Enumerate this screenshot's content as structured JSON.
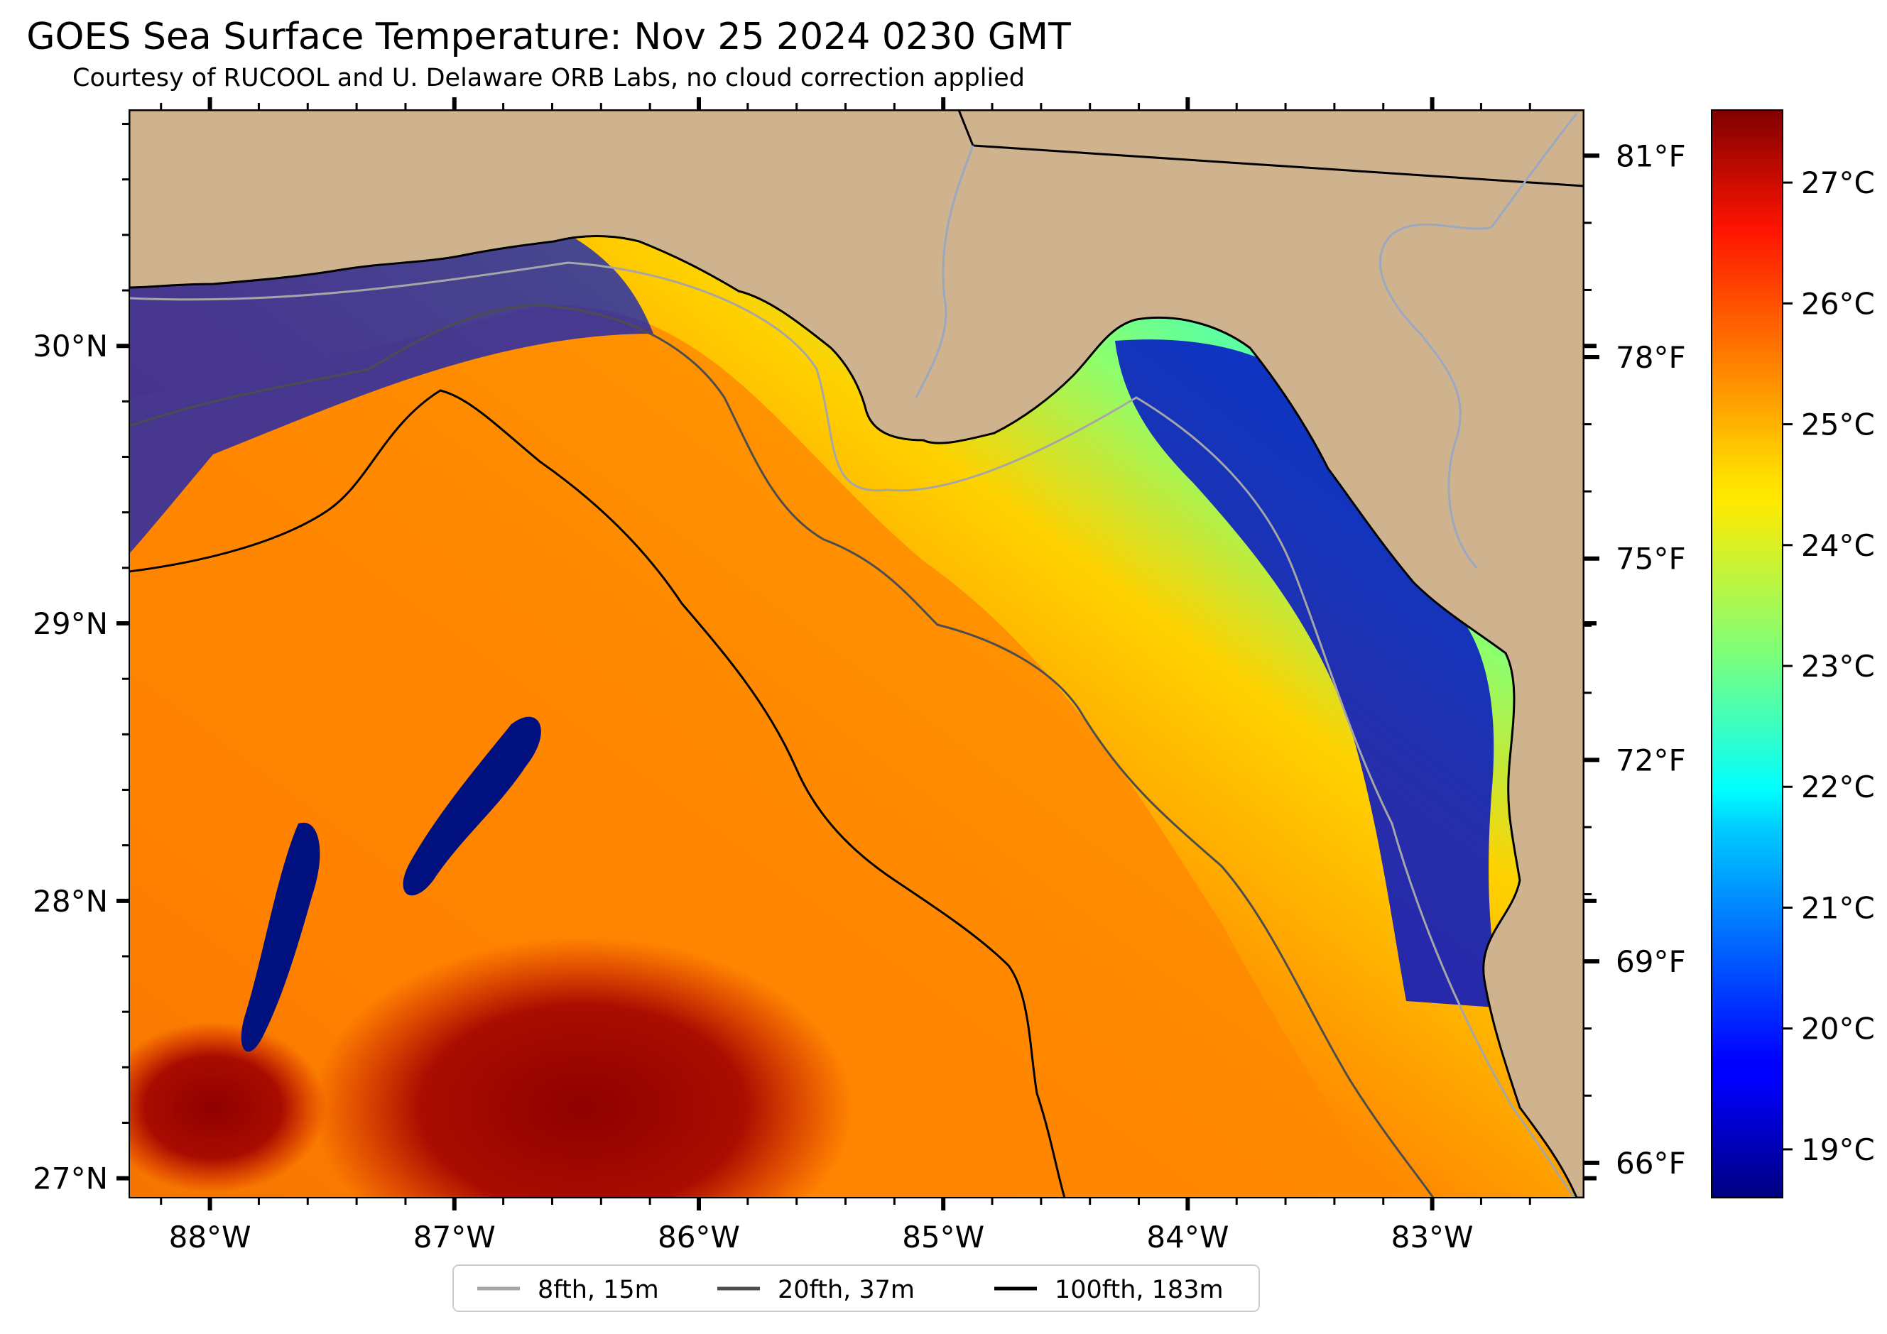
{
  "title": "GOES Sea Surface Temperature: Nov 25 2024 0230 GMT",
  "subtitle": "Courtesy of RUCOOL and U. Delaware ORB Labs, no cloud correction applied",
  "map": {
    "lon_range": [
      -88.33,
      -82.38
    ],
    "lat_range": [
      26.93,
      30.85
    ],
    "lon_ticks": [
      {
        "value": -88,
        "label": "88°W"
      },
      {
        "value": -87,
        "label": "87°W"
      },
      {
        "value": -86,
        "label": "86°W"
      },
      {
        "value": -85,
        "label": "85°W"
      },
      {
        "value": -84,
        "label": "84°W"
      },
      {
        "value": -83,
        "label": "83°W"
      }
    ],
    "lat_ticks": [
      {
        "value": 30,
        "label": "30°N"
      },
      {
        "value": 29,
        "label": "29°N"
      },
      {
        "value": 28,
        "label": "28°N"
      },
      {
        "value": 27,
        "label": "27°N"
      }
    ],
    "fahrenheit_ticks": [
      {
        "value": 81,
        "label": "81°F"
      },
      {
        "value": 78,
        "label": "78°F"
      },
      {
        "value": 75,
        "label": "75°F"
      },
      {
        "value": 72,
        "label": "72°F"
      },
      {
        "value": 69,
        "label": "69°F"
      },
      {
        "value": 66,
        "label": "66°F"
      }
    ],
    "land_color": "#cfb38f",
    "colormap": "jet"
  },
  "colorbar": {
    "units": "°C",
    "range": [
      18.6,
      27.6
    ],
    "ticks": [
      {
        "value": 27,
        "label": "27°C"
      },
      {
        "value": 26,
        "label": "26°C"
      },
      {
        "value": 25,
        "label": "25°C"
      },
      {
        "value": 24,
        "label": "24°C"
      },
      {
        "value": 23,
        "label": "23°C"
      },
      {
        "value": 22,
        "label": "22°C"
      },
      {
        "value": 21,
        "label": "21°C"
      },
      {
        "value": 20,
        "label": "20°C"
      },
      {
        "value": 19,
        "label": "19°C"
      }
    ]
  },
  "legend": {
    "items": [
      {
        "label": "8fth, 15m",
        "color": "#a6a6a6"
      },
      {
        "label": "20fth, 37m",
        "color": "#4d4d4d"
      },
      {
        "label": "100fth, 183m",
        "color": "#000000"
      }
    ]
  }
}
